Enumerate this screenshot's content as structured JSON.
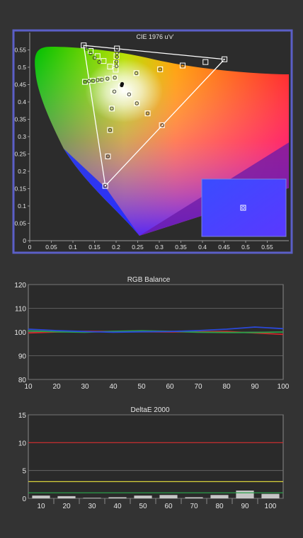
{
  "colors": {
    "background": "#333333",
    "plot_bg": "#2a2a2a",
    "frame": "#5b5fc7",
    "grid": "#6e6e6e",
    "red": "#d0272a",
    "green": "#2aa04a",
    "blue": "#2a48d8",
    "yellow": "#d9d23a",
    "bar": "#e0e0e0"
  },
  "chart_data": [
    {
      "type": "scatter",
      "title": "CIE 1976 u'v'",
      "xlim": [
        0,
        0.6
      ],
      "ylim": [
        0,
        0.6
      ],
      "x_ticks": [
        "0",
        "0.05",
        "0.1",
        "0.15",
        "0.2",
        "0.25",
        "0.3",
        "0.35",
        "0.4",
        "0.45",
        "0.5",
        "0.55"
      ],
      "x_tick_values": [
        0,
        0.05,
        0.1,
        0.15,
        0.2,
        0.25,
        0.3,
        0.35,
        0.4,
        0.45,
        0.5,
        0.55
      ],
      "y_ticks": [
        "0",
        "0.05",
        "0.1",
        "0.15",
        "0.2",
        "0.25",
        "0.3",
        "0.35",
        "0.4",
        "0.45",
        "0.5",
        "0.55"
      ],
      "y_tick_values": [
        0,
        0.05,
        0.1,
        0.15,
        0.2,
        0.25,
        0.3,
        0.35,
        0.4,
        0.45,
        0.5,
        0.55
      ],
      "gamut_triangle": [
        [
          0.451,
          0.523
        ],
        [
          0.125,
          0.563
        ],
        [
          0.175,
          0.158
        ]
      ],
      "white_point": [
        0.198,
        0.468
      ],
      "target_squares": [
        [
          0.451,
          0.523
        ],
        [
          0.407,
          0.515
        ],
        [
          0.354,
          0.505
        ],
        [
          0.302,
          0.494
        ],
        [
          0.247,
          0.483
        ],
        [
          0.125,
          0.563
        ],
        [
          0.141,
          0.547
        ],
        [
          0.157,
          0.532
        ],
        [
          0.171,
          0.518
        ],
        [
          0.186,
          0.502
        ],
        [
          0.175,
          0.158
        ],
        [
          0.181,
          0.243
        ],
        [
          0.186,
          0.319
        ],
        [
          0.19,
          0.381
        ],
        [
          0.194,
          0.43
        ],
        [
          0.306,
          0.333
        ],
        [
          0.273,
          0.367
        ],
        [
          0.248,
          0.396
        ],
        [
          0.23,
          0.422
        ],
        [
          0.212,
          0.445
        ],
        [
          0.202,
          0.554
        ],
        [
          0.201,
          0.532
        ],
        [
          0.2,
          0.512
        ],
        [
          0.199,
          0.493
        ],
        [
          0.128,
          0.458
        ],
        [
          0.146,
          0.461
        ],
        [
          0.163,
          0.464
        ],
        [
          0.18,
          0.467
        ],
        [
          0.197,
          0.47
        ]
      ],
      "measured_circles": [
        [
          0.128,
          0.458
        ],
        [
          0.137,
          0.46
        ],
        [
          0.147,
          0.461
        ],
        [
          0.157,
          0.463
        ],
        [
          0.167,
          0.464
        ],
        [
          0.18,
          0.467
        ],
        [
          0.132,
          0.553
        ],
        [
          0.141,
          0.54
        ],
        [
          0.15,
          0.527
        ],
        [
          0.161,
          0.515
        ],
        [
          0.202,
          0.552
        ],
        [
          0.202,
          0.541
        ],
        [
          0.202,
          0.53
        ],
        [
          0.201,
          0.516
        ],
        [
          0.201,
          0.503
        ],
        [
          0.196,
          0.43
        ],
        [
          0.23,
          0.422
        ],
        [
          0.248,
          0.396
        ],
        [
          0.273,
          0.367
        ],
        [
          0.307,
          0.333
        ],
        [
          0.19,
          0.381
        ],
        [
          0.186,
          0.319
        ],
        [
          0.181,
          0.243
        ],
        [
          0.175,
          0.158
        ],
        [
          0.247,
          0.483
        ],
        [
          0.302,
          0.494
        ],
        [
          0.354,
          0.505
        ],
        [
          0.407,
          0.515
        ],
        [
          0.451,
          0.523
        ],
        [
          0.197,
          0.47
        ]
      ],
      "measured_dots": [
        [
          0.213,
          0.448
        ],
        [
          0.214,
          0.452
        ]
      ]
    },
    {
      "type": "line",
      "title": "RGB Balance",
      "x": [
        10,
        20,
        30,
        40,
        50,
        60,
        70,
        80,
        90,
        100
      ],
      "xlim": [
        10,
        100
      ],
      "ylim": [
        80,
        120
      ],
      "x_ticks": [
        "10",
        "20",
        "30",
        "40",
        "50",
        "60",
        "70",
        "80",
        "90",
        "100"
      ],
      "y_ticks": [
        "80",
        "90",
        "100",
        "110",
        "120"
      ],
      "y_tick_values": [
        80,
        90,
        100,
        110,
        120
      ],
      "series": [
        {
          "color": "red",
          "values": [
            99.6,
            100.0,
            100.3,
            100.2,
            100.1,
            100.0,
            100.1,
            100.2,
            99.6,
            99.0
          ]
        },
        {
          "color": "green",
          "values": [
            100.5,
            100.1,
            99.9,
            100.3,
            100.5,
            100.3,
            99.9,
            99.8,
            99.8,
            100.0
          ]
        },
        {
          "color": "blue",
          "values": [
            101.2,
            100.6,
            100.2,
            99.9,
            100.1,
            100.2,
            100.6,
            101.2,
            102.1,
            101.4
          ]
        }
      ],
      "grid": true
    },
    {
      "type": "bar",
      "title": "DeltaE 2000",
      "categories": [
        "10",
        "20",
        "30",
        "40",
        "50",
        "60",
        "70",
        "80",
        "90",
        "100"
      ],
      "values": [
        0.5,
        0.4,
        0.1,
        0.2,
        0.5,
        0.6,
        0.2,
        0.6,
        1.4,
        0.8
      ],
      "ylim": [
        0,
        15
      ],
      "y_ticks": [
        "0",
        "5",
        "10",
        "15"
      ],
      "y_tick_values": [
        0,
        5,
        10,
        15
      ],
      "thresholds": [
        {
          "value": 10,
          "color": "red"
        },
        {
          "value": 3,
          "color": "yellow"
        },
        {
          "value": 1,
          "color": "green"
        }
      ],
      "grid": true
    }
  ]
}
